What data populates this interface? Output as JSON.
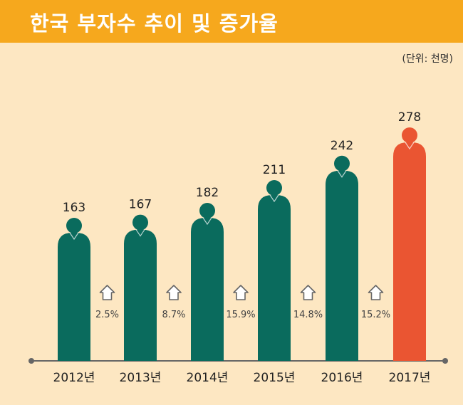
{
  "title": "한국 부자수 추이 및 증가율",
  "unit": "(단위: 천명)",
  "colors": {
    "header": "#f6a81d",
    "background": "#fde7c2",
    "bar": "#0a6b5d",
    "highlight": "#ea5532",
    "axis": "#666666"
  },
  "chart_data": {
    "type": "bar",
    "categories": [
      "2012년",
      "2013년",
      "2014년",
      "2015년",
      "2016년",
      "2017년"
    ],
    "values": [
      163,
      167,
      182,
      211,
      242,
      278
    ],
    "labels": [
      "163",
      "167",
      "182",
      "211",
      "242",
      "278"
    ],
    "growth_rates": [
      "2.5%",
      "8.7%",
      "15.9%",
      "14.8%",
      "15.2%"
    ],
    "highlight_index": 5,
    "xlabel": "",
    "ylabel": ""
  }
}
